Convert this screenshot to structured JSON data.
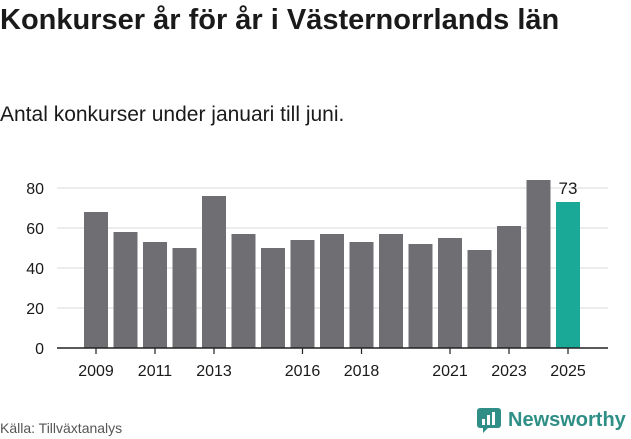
{
  "title": "Konkurser år för år i Västernorrlands län",
  "subtitle": "Antal konkurser under januari till juni.",
  "source": "Källa: Tillväxtanalys",
  "brand": "Newsworthy",
  "colors": {
    "bar": "#6f6e73",
    "highlight": "#1aa897",
    "grid": "#d9d9d9",
    "brand": "#2f8f86"
  },
  "chart_data": {
    "type": "bar",
    "categories": [
      "2009",
      "2010",
      "2011",
      "2012",
      "2013",
      "2014",
      "2015",
      "2016",
      "2017",
      "2018",
      "2019",
      "2020",
      "2021",
      "2022",
      "2023",
      "2024",
      "2025"
    ],
    "values": [
      68,
      58,
      53,
      50,
      76,
      57,
      50,
      54,
      57,
      53,
      57,
      52,
      55,
      49,
      61,
      84,
      73
    ],
    "x_tick_labels": [
      "2009",
      "2011",
      "2013",
      "2016",
      "2018",
      "2021",
      "2023",
      "2025"
    ],
    "y_ticks": [
      0,
      20,
      40,
      60,
      80
    ],
    "ylim": [
      0,
      90
    ],
    "highlight": {
      "category": "2025",
      "label": "73"
    },
    "grid": true
  }
}
